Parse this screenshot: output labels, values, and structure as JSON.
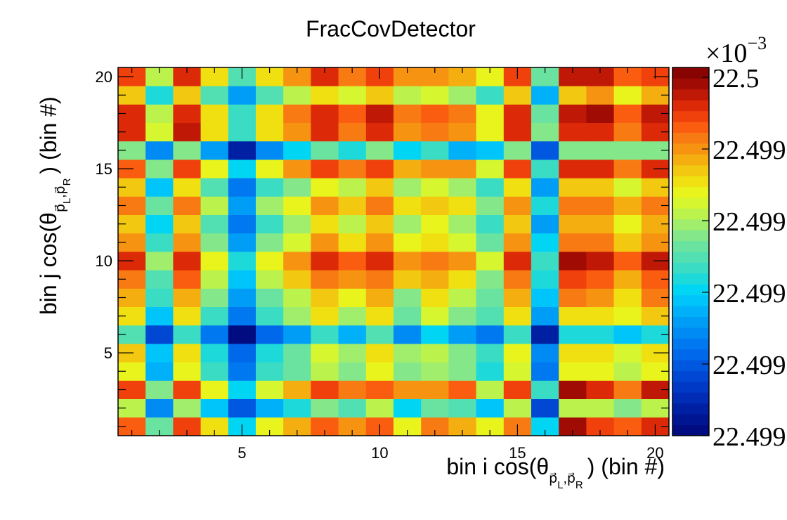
{
  "chart_data": {
    "type": "heatmap",
    "title": "FracCovDetector",
    "xlabel": {
      "prefix": "bin i cos(θ",
      "subscript": "p⃗",
      "sub_L": "L",
      "comma": ",",
      "sub_R": "R",
      "suffix": ") (bin #)"
    },
    "ylabel": {
      "prefix": "bin j cos(θ",
      "subscript": "p⃗",
      "sub_L": "L",
      "comma": ",",
      "sub_R": "R",
      "suffix": ") (bin #)"
    },
    "xlim": [
      0.5,
      20.5
    ],
    "ylim": [
      0.5,
      20.5
    ],
    "x_ticks": [
      5,
      10,
      15,
      20
    ],
    "y_ticks": [
      5,
      10,
      15,
      20
    ],
    "colorbar": {
      "multiplier": "×10",
      "exponent": "−3",
      "tick_labels": [
        "22.499",
        "22.499",
        "22.499",
        "22.499",
        "22.499",
        "22.5"
      ],
      "levels": 33
    },
    "z_levels_comment_free": true,
    "z": [
      [
        28,
        17,
        29,
        23,
        13,
        22,
        25,
        28,
        26,
        28,
        22,
        27,
        25,
        22,
        27,
        13,
        32,
        29,
        28,
        30
      ],
      [
        20,
        9,
        19,
        12,
        6,
        11,
        14,
        18,
        16,
        20,
        13,
        17,
        16,
        12,
        20,
        5,
        20,
        20,
        18,
        20
      ],
      [
        29,
        18,
        29,
        22,
        13,
        21,
        25,
        29,
        27,
        28,
        26,
        26,
        28,
        20,
        29,
        15,
        32,
        30,
        27,
        31
      ],
      [
        22,
        11,
        22,
        15,
        8,
        15,
        17,
        20,
        18,
        22,
        18,
        19,
        18,
        14,
        21,
        8,
        22,
        22,
        20,
        22
      ],
      [
        24,
        12,
        23,
        14,
        7,
        14,
        17,
        21,
        19,
        23,
        19,
        20,
        18,
        15,
        22,
        9,
        23,
        23,
        21,
        23
      ],
      [
        16,
        5,
        15,
        8,
        0,
        7,
        10,
        15,
        11,
        16,
        9,
        13,
        10,
        8,
        15,
        2,
        14,
        14,
        12,
        14
      ],
      [
        23,
        12,
        23,
        15,
        8,
        15,
        19,
        23,
        19,
        23,
        17,
        21,
        18,
        16,
        23,
        10,
        23,
        23,
        22,
        24
      ],
      [
        25,
        15,
        25,
        18,
        10,
        17,
        20,
        24,
        22,
        25,
        18,
        23,
        20,
        17,
        25,
        12,
        27,
        26,
        23,
        27
      ],
      [
        27,
        16,
        28,
        20,
        12,
        20,
        24,
        27,
        26,
        27,
        24,
        25,
        23,
        18,
        27,
        14,
        29,
        28,
        25,
        28
      ],
      [
        30,
        19,
        30,
        22,
        14,
        22,
        26,
        30,
        28,
        30,
        26,
        27,
        26,
        21,
        30,
        15,
        32,
        31,
        28,
        31
      ],
      [
        26,
        15,
        26,
        18,
        10,
        18,
        21,
        26,
        23,
        26,
        22,
        23,
        21,
        17,
        26,
        13,
        27,
        27,
        24,
        26
      ],
      [
        24,
        13,
        24,
        16,
        8,
        15,
        19,
        23,
        20,
        24,
        19,
        22,
        19,
        15,
        24,
        10,
        25,
        25,
        22,
        25
      ],
      [
        27,
        17,
        27,
        20,
        10,
        19,
        22,
        26,
        24,
        27,
        23,
        24,
        23,
        18,
        26,
        14,
        27,
        27,
        25,
        27
      ],
      [
        24,
        12,
        23,
        16,
        8,
        15,
        18,
        22,
        20,
        24,
        19,
        21,
        19,
        15,
        23,
        10,
        24,
        24,
        21,
        24
      ],
      [
        28,
        18,
        29,
        22,
        13,
        22,
        26,
        29,
        27,
        29,
        25,
        26,
        26,
        21,
        29,
        15,
        30,
        30,
        27,
        30
      ],
      [
        18,
        9,
        18,
        10,
        2,
        9,
        13,
        17,
        14,
        18,
        13,
        15,
        11,
        12,
        18,
        6,
        18,
        18,
        18,
        18
      ],
      [
        30,
        21,
        31,
        23,
        15,
        23,
        26,
        30,
        27,
        30,
        26,
        27,
        26,
        22,
        30,
        18,
        30,
        30,
        27,
        30
      ],
      [
        30,
        20,
        30,
        23,
        15,
        23,
        27,
        30,
        28,
        31,
        27,
        28,
        27,
        22,
        30,
        17,
        31,
        32,
        28,
        31
      ],
      [
        24,
        14,
        24,
        16,
        10,
        16,
        20,
        23,
        21,
        24,
        20,
        21,
        19,
        15,
        24,
        11,
        24,
        26,
        22,
        25
      ],
      [
        29,
        20,
        30,
        23,
        16,
        23,
        26,
        30,
        27,
        29,
        26,
        26,
        25,
        22,
        29,
        17,
        31,
        31,
        28,
        29
      ]
    ]
  },
  "palette": [
    "#000c80",
    "#001592",
    "#0020a4",
    "#002cb6",
    "#0039c6",
    "#0047d4",
    "#0057e0",
    "#0068ea",
    "#0079f0",
    "#008bf4",
    "#009df6",
    "#00b0f8",
    "#00c5fb",
    "#00d6f4",
    "#1ed9d9",
    "#3adcc4",
    "#52dfb2",
    "#6ae3a0",
    "#84e88a",
    "#a0ee6c",
    "#bcf24c",
    "#d6f730",
    "#e8f41c",
    "#f0e012",
    "#f2c810",
    "#f4ae10",
    "#f69412",
    "#f87a12",
    "#fa5c10",
    "#f0400c",
    "#dc2a08",
    "#c01806",
    "#a00c04",
    "#880402"
  ]
}
